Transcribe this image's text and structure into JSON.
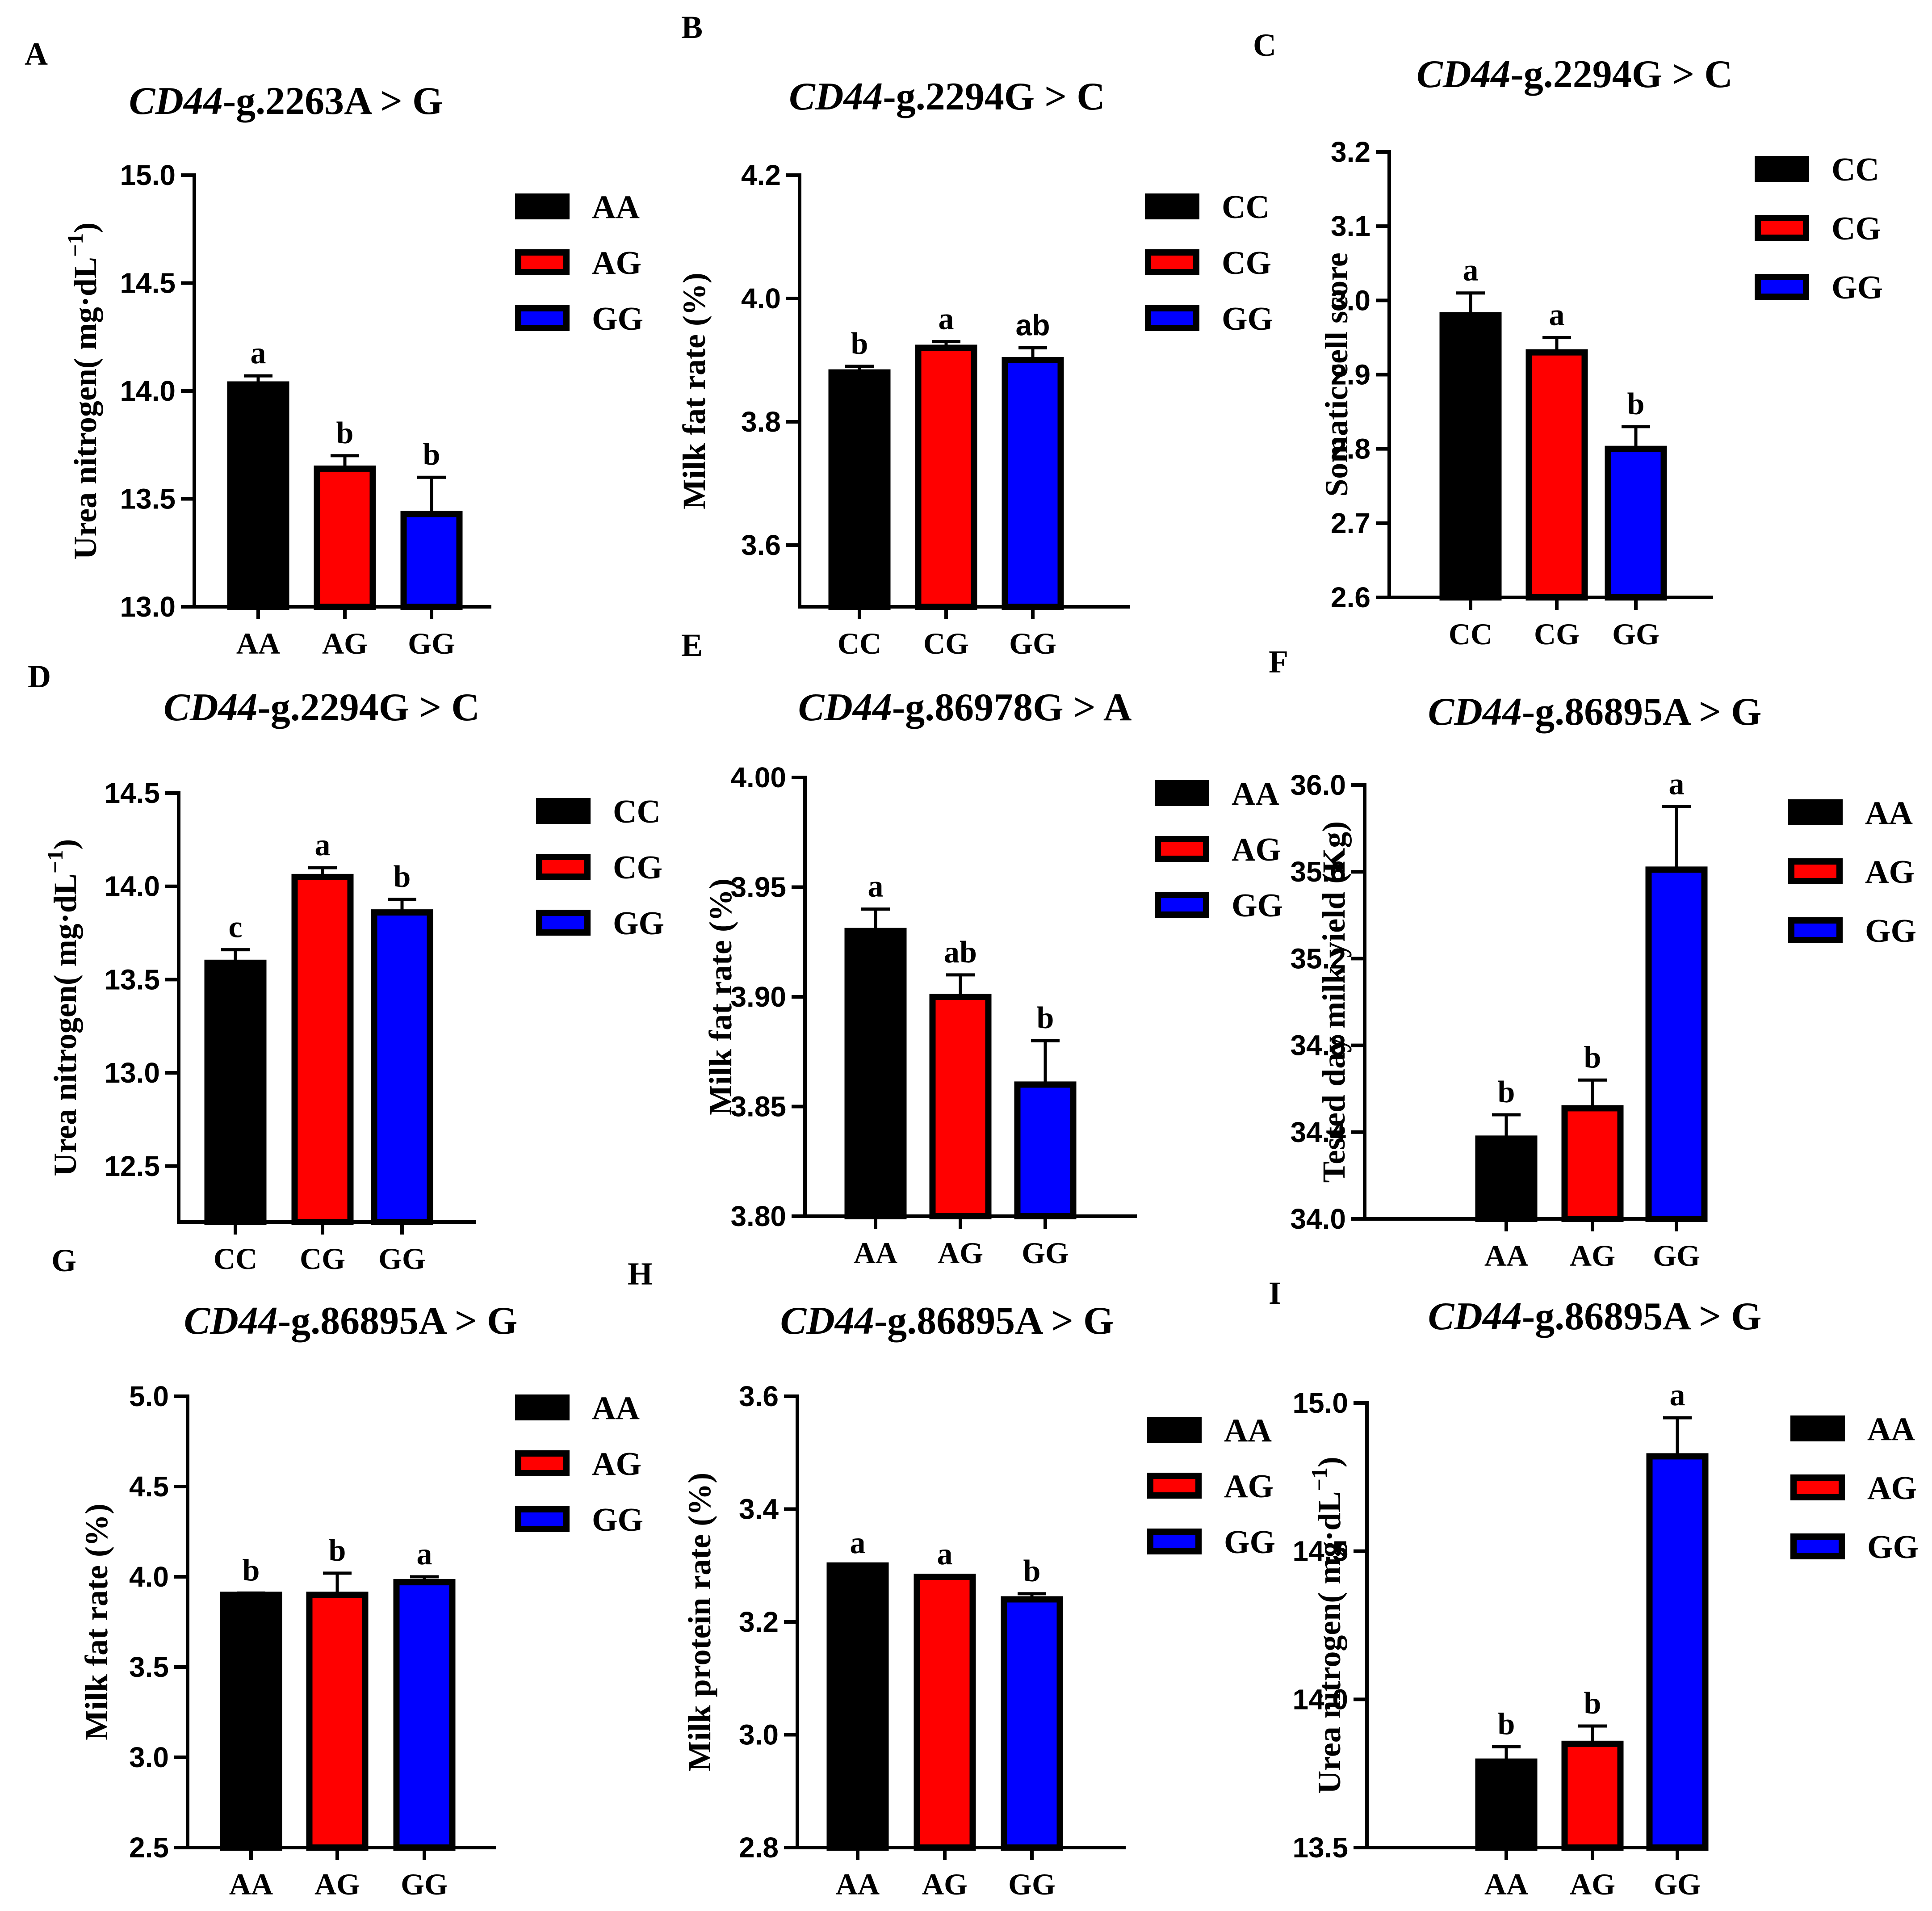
{
  "chart_data": [
    {
      "panel": "A",
      "type": "bar",
      "title_gene": "CD44",
      "title_rest": "-g.2263A > G",
      "ylabel": "Urea nitrogen( mg·dL",
      "ylabel_sup": "−1",
      "ylabel_end": ")",
      "ylim": [
        13.0,
        15.0
      ],
      "yticks": [
        "13.0",
        "13.5",
        "14.0",
        "14.5",
        "15.0"
      ],
      "categories": [
        "AA",
        "AG",
        "GG"
      ],
      "values": [
        14.03,
        13.64,
        13.43
      ],
      "errors": [
        0.04,
        0.06,
        0.17
      ],
      "letters": [
        "a",
        "b",
        "b"
      ],
      "legend": [
        "AA",
        "AG",
        "GG"
      ],
      "colors": [
        "#000000",
        "#ff0000",
        "#0000ff"
      ]
    },
    {
      "panel": "B",
      "type": "bar",
      "title_gene": "CD44",
      "title_rest": "-g.2294G > C",
      "ylabel": "Milk fat rate (%)",
      "ylim": [
        3.5,
        4.2
      ],
      "yticks": [
        "3.6",
        "3.8",
        "4.0",
        "4.2"
      ],
      "categories": [
        "CC",
        "CG",
        "GG"
      ],
      "values": [
        3.88,
        3.92,
        3.9
      ],
      "errors": [
        0.01,
        0.01,
        0.02
      ],
      "letters": [
        "b",
        "a",
        "ab"
      ],
      "legend": [
        "CC",
        "CG",
        "GG"
      ],
      "colors": [
        "#000000",
        "#ff0000",
        "#0000ff"
      ]
    },
    {
      "panel": "C",
      "type": "bar",
      "title_gene": "CD44",
      "title_rest": "-g.2294G > C",
      "ylabel": "Somatic cell score",
      "ylim": [
        2.6,
        3.2
      ],
      "yticks": [
        "2.6",
        "2.7",
        "2.8",
        "2.9",
        "3.0",
        "3.1",
        "3.2"
      ],
      "categories": [
        "CC",
        "CG",
        "GG"
      ],
      "values": [
        2.98,
        2.93,
        2.8
      ],
      "errors": [
        0.03,
        0.02,
        0.03
      ],
      "letters": [
        "a",
        "a",
        "b"
      ],
      "legend": [
        "CC",
        "CG",
        "GG"
      ],
      "colors": [
        "#000000",
        "#ff0000",
        "#0000ff"
      ]
    },
    {
      "panel": "D",
      "type": "bar",
      "title_gene": "CD44",
      "title_rest": "-g.2294G > C",
      "ylabel": "Urea nitrogen( mg·dL",
      "ylabel_sup": "−1",
      "ylabel_end": ")",
      "ylim": [
        12.2,
        14.5
      ],
      "yticks": [
        "12.5",
        "13.0",
        "13.5",
        "14.0",
        "14.5"
      ],
      "categories": [
        "CC",
        "CG",
        "GG"
      ],
      "values": [
        13.59,
        14.05,
        13.86
      ],
      "errors": [
        0.07,
        0.05,
        0.07
      ],
      "letters": [
        "c",
        "a",
        "b"
      ],
      "legend": [
        "CC",
        "CG",
        "GG"
      ],
      "colors": [
        "#000000",
        "#ff0000",
        "#0000ff"
      ]
    },
    {
      "panel": "E",
      "type": "bar",
      "title_gene": "CD44",
      "title_rest": "-g.86978G > A",
      "ylabel": "Milk fat rate (%)",
      "ylim": [
        3.8,
        4.0
      ],
      "yticks": [
        "3.80",
        "3.85",
        "3.90",
        "3.95",
        "4.00"
      ],
      "categories": [
        "AA",
        "AG",
        "GG"
      ],
      "values": [
        3.93,
        3.9,
        3.86
      ],
      "errors": [
        0.01,
        0.01,
        0.02
      ],
      "letters": [
        "a",
        "ab",
        "b"
      ],
      "legend": [
        "AA",
        "AG",
        "GG"
      ],
      "colors": [
        "#000000",
        "#ff0000",
        "#0000ff"
      ]
    },
    {
      "panel": "F",
      "type": "bar",
      "title_gene": "CD44",
      "title_rest": "-g.86895A > G",
      "ylabel": "Tested day milk yield (Kg)",
      "ylim": [
        34.0,
        36.0
      ],
      "yticks": [
        "34.0",
        "34.4",
        "34.8",
        "35.2",
        "35.6",
        "36.0"
      ],
      "categories": [
        "AA",
        "AG",
        "GG"
      ],
      "values": [
        34.37,
        34.51,
        35.61
      ],
      "errors": [
        0.11,
        0.13,
        0.29
      ],
      "letters": [
        "b",
        "b",
        "a"
      ],
      "legend": [
        "AA",
        "AG",
        "GG"
      ],
      "colors": [
        "#000000",
        "#ff0000",
        "#0000ff"
      ]
    },
    {
      "panel": "G",
      "type": "bar",
      "title_gene": "CD44",
      "title_rest": "-g.86895A > G",
      "ylabel": "Milk fat rate (%)",
      "ylim": [
        2.5,
        5.0
      ],
      "yticks": [
        "2.5",
        "3.0",
        "3.5",
        "4.0",
        "4.5",
        "5.0"
      ],
      "categories": [
        "AA",
        "AG",
        "GG"
      ],
      "values": [
        3.9,
        3.9,
        3.97
      ],
      "errors": [
        0.01,
        0.12,
        0.03
      ],
      "letters": [
        "b",
        "b",
        "a"
      ],
      "legend": [
        "AA",
        "AG",
        "GG"
      ],
      "colors": [
        "#000000",
        "#ff0000",
        "#0000ff"
      ]
    },
    {
      "panel": "H",
      "type": "bar",
      "title_gene": "CD44",
      "title_rest": "-g.86895A > G",
      "ylabel": "Milk protein rate (%)",
      "ylim": [
        2.8,
        3.6
      ],
      "yticks": [
        "2.8",
        "3.0",
        "3.2",
        "3.4",
        "3.6"
      ],
      "categories": [
        "AA",
        "AG",
        "GG"
      ],
      "values": [
        3.3,
        3.28,
        3.24
      ],
      "errors": [
        0.0,
        0.0,
        0.01
      ],
      "letters": [
        "a",
        "a",
        "b"
      ],
      "legend": [
        "AA",
        "AG",
        "GG"
      ],
      "colors": [
        "#000000",
        "#ff0000",
        "#0000ff"
      ]
    },
    {
      "panel": "I",
      "type": "bar",
      "title_gene": "CD44",
      "title_rest": "-g.86895A > G",
      "ylabel": "Urea nitrogen( mg·dL",
      "ylabel_sup": "−1",
      "ylabel_end": ")",
      "ylim": [
        13.5,
        15.0
      ],
      "yticks": [
        "13.5",
        "14.0",
        "14.5",
        "15.0"
      ],
      "categories": [
        "AA",
        "AG",
        "GG"
      ],
      "values": [
        13.79,
        13.85,
        14.82
      ],
      "errors": [
        0.05,
        0.06,
        0.13
      ],
      "letters": [
        "b",
        "b",
        "a"
      ],
      "legend": [
        "AA",
        "AG",
        "GG"
      ],
      "colors": [
        "#000000",
        "#ff0000",
        "#0000ff"
      ]
    }
  ]
}
